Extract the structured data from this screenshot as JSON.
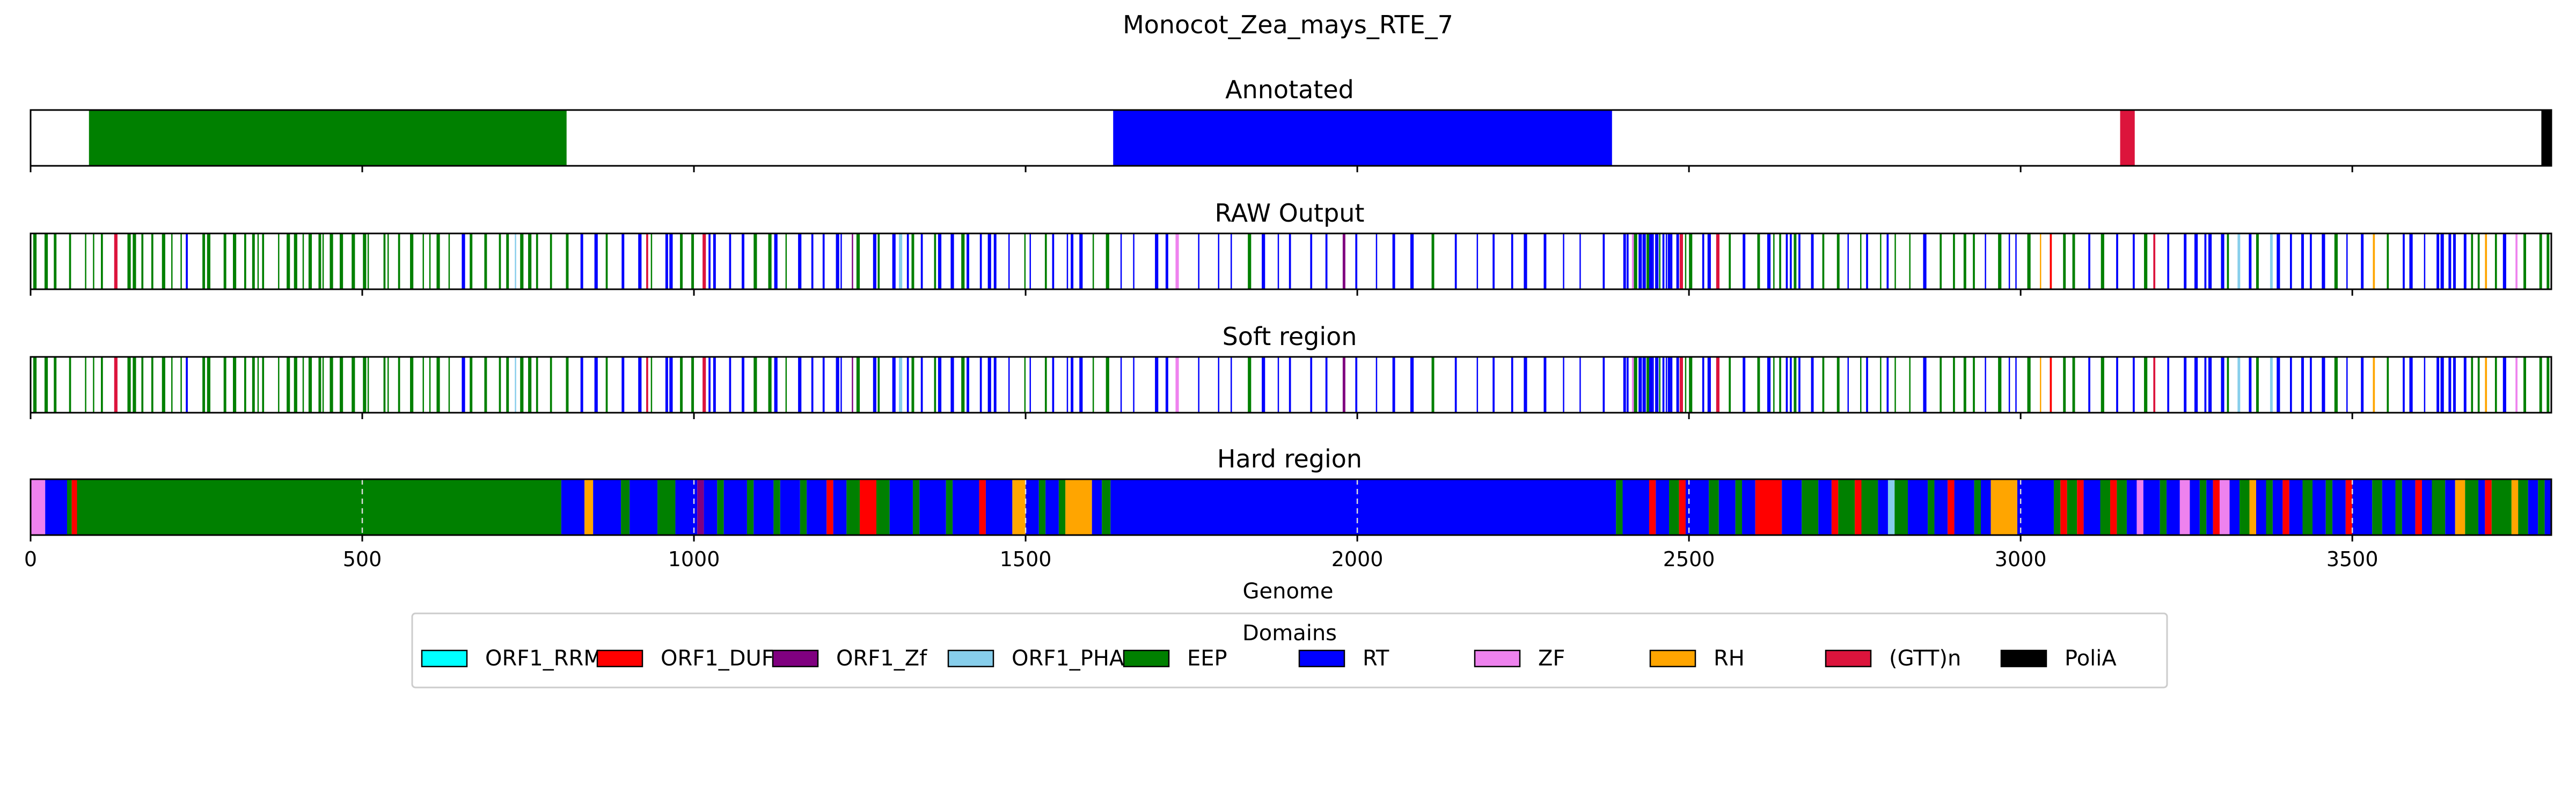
{
  "chart_data": {
    "type": "feature-track",
    "title": "Monocot_Zea_mays_RTE_7",
    "xlabel": "Genome",
    "xlim": [
      0,
      3800
    ],
    "xticks": [
      0,
      500,
      1000,
      1500,
      2000,
      2500,
      3000,
      3500
    ],
    "legend": {
      "title": "Domains",
      "placement": "bottom-center",
      "entries": [
        {
          "name": "ORF1_RRM",
          "color": "#00ffff"
        },
        {
          "name": "ORF1_DUF",
          "color": "#ff0000"
        },
        {
          "name": "ORF1_Zf",
          "color": "#800080"
        },
        {
          "name": "ORF1_PHA",
          "color": "#87ceeb"
        },
        {
          "name": "EEP",
          "color": "#008000"
        },
        {
          "name": "RT",
          "color": "#0000ff"
        },
        {
          "name": "ZF",
          "color": "#ee82ee"
        },
        {
          "name": "RH",
          "color": "#ffa500"
        },
        {
          "name": "(GTT)n",
          "color": "#dc143c"
        },
        {
          "name": "PoliA",
          "color": "#000000"
        }
      ]
    },
    "panels": [
      {
        "title": "Annotated",
        "kind": "segments",
        "grid": false,
        "segments": [
          {
            "start": 88,
            "end": 808,
            "domain": "EEP"
          },
          {
            "start": 1632,
            "end": 2384,
            "domain": "RT"
          },
          {
            "start": 3150,
            "end": 3172,
            "domain": "(GTT)n"
          },
          {
            "start": 3785,
            "end": 3800,
            "domain": "PoliA"
          }
        ]
      },
      {
        "title": "RAW Output",
        "kind": "positions",
        "grid": false
      },
      {
        "title": "Soft region",
        "kind": "positions",
        "grid": false
      },
      {
        "title": "Hard region",
        "kind": "segments",
        "grid": true,
        "segments": [
          {
            "start": 0,
            "end": 22,
            "domain": "ZF"
          },
          {
            "start": 22,
            "end": 55,
            "domain": "RT"
          },
          {
            "start": 55,
            "end": 62,
            "domain": "EEP"
          },
          {
            "start": 62,
            "end": 70,
            "domain": "ORF1_DUF"
          },
          {
            "start": 70,
            "end": 800,
            "domain": "EEP"
          },
          {
            "start": 800,
            "end": 835,
            "domain": "RT"
          },
          {
            "start": 835,
            "end": 848,
            "domain": "RH"
          },
          {
            "start": 848,
            "end": 890,
            "domain": "RT"
          },
          {
            "start": 890,
            "end": 903,
            "domain": "EEP"
          },
          {
            "start": 903,
            "end": 945,
            "domain": "RT"
          },
          {
            "start": 945,
            "end": 972,
            "domain": "EEP"
          },
          {
            "start": 972,
            "end": 1005,
            "domain": "RT"
          },
          {
            "start": 1005,
            "end": 1015,
            "domain": "ORF1_Zf"
          },
          {
            "start": 1015,
            "end": 1035,
            "domain": "RT"
          },
          {
            "start": 1035,
            "end": 1045,
            "domain": "EEP"
          },
          {
            "start": 1045,
            "end": 1080,
            "domain": "RT"
          },
          {
            "start": 1080,
            "end": 1090,
            "domain": "EEP"
          },
          {
            "start": 1090,
            "end": 1120,
            "domain": "RT"
          },
          {
            "start": 1120,
            "end": 1130,
            "domain": "EEP"
          },
          {
            "start": 1130,
            "end": 1160,
            "domain": "RT"
          },
          {
            "start": 1160,
            "end": 1170,
            "domain": "EEP"
          },
          {
            "start": 1170,
            "end": 1200,
            "domain": "RT"
          },
          {
            "start": 1200,
            "end": 1210,
            "domain": "ORF1_DUF"
          },
          {
            "start": 1210,
            "end": 1230,
            "domain": "RT"
          },
          {
            "start": 1230,
            "end": 1250,
            "domain": "EEP"
          },
          {
            "start": 1250,
            "end": 1275,
            "domain": "ORF1_DUF"
          },
          {
            "start": 1275,
            "end": 1295,
            "domain": "EEP"
          },
          {
            "start": 1295,
            "end": 1330,
            "domain": "RT"
          },
          {
            "start": 1330,
            "end": 1340,
            "domain": "EEP"
          },
          {
            "start": 1340,
            "end": 1380,
            "domain": "RT"
          },
          {
            "start": 1380,
            "end": 1390,
            "domain": "EEP"
          },
          {
            "start": 1390,
            "end": 1430,
            "domain": "RT"
          },
          {
            "start": 1430,
            "end": 1440,
            "domain": "ORF1_DUF"
          },
          {
            "start": 1440,
            "end": 1480,
            "domain": "RT"
          },
          {
            "start": 1480,
            "end": 1500,
            "domain": "RH"
          },
          {
            "start": 1500,
            "end": 1520,
            "domain": "RT"
          },
          {
            "start": 1520,
            "end": 1530,
            "domain": "EEP"
          },
          {
            "start": 1530,
            "end": 1550,
            "domain": "RT"
          },
          {
            "start": 1550,
            "end": 1560,
            "domain": "EEP"
          },
          {
            "start": 1560,
            "end": 1600,
            "domain": "RH"
          },
          {
            "start": 1600,
            "end": 1615,
            "domain": "RT"
          },
          {
            "start": 1615,
            "end": 1628,
            "domain": "EEP"
          },
          {
            "start": 1628,
            "end": 2390,
            "domain": "RT"
          },
          {
            "start": 2390,
            "end": 2400,
            "domain": "EEP"
          },
          {
            "start": 2400,
            "end": 2440,
            "domain": "RT"
          },
          {
            "start": 2440,
            "end": 2450,
            "domain": "ORF1_DUF"
          },
          {
            "start": 2450,
            "end": 2470,
            "domain": "RT"
          },
          {
            "start": 2470,
            "end": 2485,
            "domain": "EEP"
          },
          {
            "start": 2485,
            "end": 2495,
            "domain": "ORF1_DUF"
          },
          {
            "start": 2495,
            "end": 2530,
            "domain": "RT"
          },
          {
            "start": 2530,
            "end": 2545,
            "domain": "EEP"
          },
          {
            "start": 2545,
            "end": 2570,
            "domain": "RT"
          },
          {
            "start": 2570,
            "end": 2580,
            "domain": "EEP"
          },
          {
            "start": 2580,
            "end": 2600,
            "domain": "RT"
          },
          {
            "start": 2600,
            "end": 2640,
            "domain": "ORF1_DUF"
          },
          {
            "start": 2640,
            "end": 2670,
            "domain": "RT"
          },
          {
            "start": 2670,
            "end": 2695,
            "domain": "EEP"
          },
          {
            "start": 2695,
            "end": 2715,
            "domain": "RT"
          },
          {
            "start": 2715,
            "end": 2725,
            "domain": "ORF1_DUF"
          },
          {
            "start": 2725,
            "end": 2750,
            "domain": "EEP"
          },
          {
            "start": 2750,
            "end": 2760,
            "domain": "ORF1_DUF"
          },
          {
            "start": 2760,
            "end": 2785,
            "domain": "EEP"
          },
          {
            "start": 2785,
            "end": 2800,
            "domain": "RT"
          },
          {
            "start": 2800,
            "end": 2810,
            "domain": "ORF1_PHA"
          },
          {
            "start": 2810,
            "end": 2830,
            "domain": "EEP"
          },
          {
            "start": 2830,
            "end": 2860,
            "domain": "RT"
          },
          {
            "start": 2860,
            "end": 2870,
            "domain": "EEP"
          },
          {
            "start": 2870,
            "end": 2890,
            "domain": "RT"
          },
          {
            "start": 2890,
            "end": 2900,
            "domain": "ORF1_DUF"
          },
          {
            "start": 2900,
            "end": 2930,
            "domain": "RT"
          },
          {
            "start": 2930,
            "end": 2940,
            "domain": "EEP"
          },
          {
            "start": 2940,
            "end": 2955,
            "domain": "RT"
          },
          {
            "start": 2955,
            "end": 2995,
            "domain": "RH"
          },
          {
            "start": 2995,
            "end": 3050,
            "domain": "RT"
          },
          {
            "start": 3050,
            "end": 3060,
            "domain": "EEP"
          },
          {
            "start": 3060,
            "end": 3070,
            "domain": "ORF1_DUF"
          },
          {
            "start": 3070,
            "end": 3085,
            "domain": "EEP"
          },
          {
            "start": 3085,
            "end": 3095,
            "domain": "ORF1_DUF"
          },
          {
            "start": 3095,
            "end": 3120,
            "domain": "RT"
          },
          {
            "start": 3120,
            "end": 3135,
            "domain": "EEP"
          },
          {
            "start": 3135,
            "end": 3145,
            "domain": "ORF1_DUF"
          },
          {
            "start": 3145,
            "end": 3160,
            "domain": "EEP"
          },
          {
            "start": 3160,
            "end": 3175,
            "domain": "RT"
          },
          {
            "start": 3175,
            "end": 3185,
            "domain": "ZF"
          },
          {
            "start": 3185,
            "end": 3210,
            "domain": "RT"
          },
          {
            "start": 3210,
            "end": 3220,
            "domain": "EEP"
          },
          {
            "start": 3220,
            "end": 3240,
            "domain": "RT"
          },
          {
            "start": 3240,
            "end": 3255,
            "domain": "ZF"
          },
          {
            "start": 3255,
            "end": 3270,
            "domain": "RT"
          },
          {
            "start": 3270,
            "end": 3280,
            "domain": "EEP"
          },
          {
            "start": 3280,
            "end": 3290,
            "domain": "RT"
          },
          {
            "start": 3290,
            "end": 3300,
            "domain": "ORF1_DUF"
          },
          {
            "start": 3300,
            "end": 3315,
            "domain": "ZF"
          },
          {
            "start": 3315,
            "end": 3330,
            "domain": "RT"
          },
          {
            "start": 3330,
            "end": 3345,
            "domain": "EEP"
          },
          {
            "start": 3345,
            "end": 3355,
            "domain": "RH"
          },
          {
            "start": 3355,
            "end": 3370,
            "domain": "RT"
          },
          {
            "start": 3370,
            "end": 3380,
            "domain": "EEP"
          },
          {
            "start": 3380,
            "end": 3395,
            "domain": "RT"
          },
          {
            "start": 3395,
            "end": 3405,
            "domain": "ORF1_DUF"
          },
          {
            "start": 3405,
            "end": 3425,
            "domain": "RT"
          },
          {
            "start": 3425,
            "end": 3440,
            "domain": "EEP"
          },
          {
            "start": 3440,
            "end": 3460,
            "domain": "RT"
          },
          {
            "start": 3460,
            "end": 3470,
            "domain": "EEP"
          },
          {
            "start": 3470,
            "end": 3490,
            "domain": "RT"
          },
          {
            "start": 3490,
            "end": 3500,
            "domain": "ORF1_DUF"
          },
          {
            "start": 3500,
            "end": 3530,
            "domain": "RT"
          },
          {
            "start": 3530,
            "end": 3545,
            "domain": "EEP"
          },
          {
            "start": 3545,
            "end": 3565,
            "domain": "RT"
          },
          {
            "start": 3565,
            "end": 3575,
            "domain": "EEP"
          },
          {
            "start": 3575,
            "end": 3595,
            "domain": "RT"
          },
          {
            "start": 3595,
            "end": 3605,
            "domain": "ORF1_DUF"
          },
          {
            "start": 3605,
            "end": 3620,
            "domain": "RT"
          },
          {
            "start": 3620,
            "end": 3640,
            "domain": "EEP"
          },
          {
            "start": 3640,
            "end": 3655,
            "domain": "RT"
          },
          {
            "start": 3655,
            "end": 3670,
            "domain": "RH"
          },
          {
            "start": 3670,
            "end": 3690,
            "domain": "EEP"
          },
          {
            "start": 3690,
            "end": 3700,
            "domain": "RT"
          },
          {
            "start": 3700,
            "end": 3710,
            "domain": "ORF1_DUF"
          },
          {
            "start": 3710,
            "end": 3740,
            "domain": "EEP"
          },
          {
            "start": 3740,
            "end": 3750,
            "domain": "RH"
          },
          {
            "start": 3750,
            "end": 3765,
            "domain": "EEP"
          },
          {
            "start": 3765,
            "end": 3780,
            "domain": "RT"
          },
          {
            "start": 3780,
            "end": 3790,
            "domain": "EEP"
          },
          {
            "start": 3790,
            "end": 3800,
            "domain": "RT"
          }
        ]
      }
    ]
  }
}
